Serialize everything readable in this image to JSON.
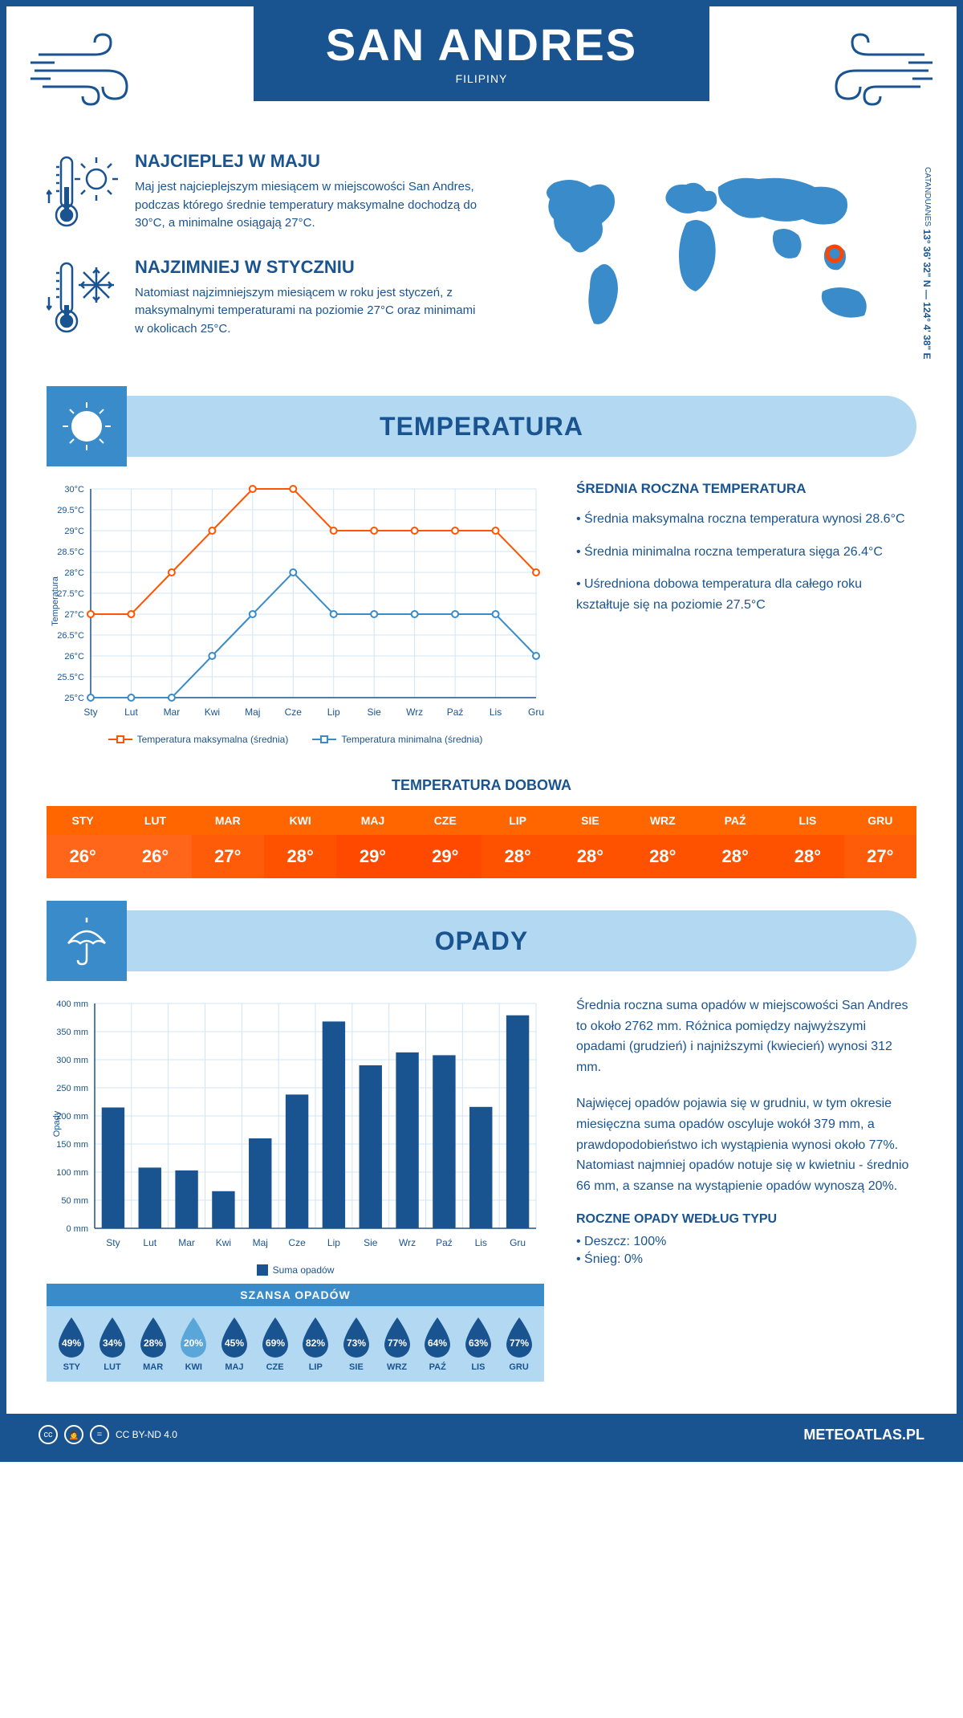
{
  "header": {
    "city": "SAN ANDRES",
    "country": "FILIPINY"
  },
  "intro": {
    "hot": {
      "title": "NAJCIEPLEJ W MAJU",
      "text": "Maj jest najcieplejszym miesiącem w miejscowości San Andres, podczas którego średnie temperatury maksymalne dochodzą do 30°C, a minimalne osiągają 27°C."
    },
    "cold": {
      "title": "NAJZIMNIEJ W STYCZNIU",
      "text": "Natomiast najzimniejszym miesiącem w roku jest styczeń, z maksymalnymi temperaturami na poziomie 27°C oraz minimami w okolicach 25°C."
    },
    "coords": "13° 36' 32\" N — 124° 4' 38\" E",
    "region": "CATANDUANES"
  },
  "months": [
    "Sty",
    "Lut",
    "Mar",
    "Kwi",
    "Maj",
    "Cze",
    "Lip",
    "Sie",
    "Wrz",
    "Paź",
    "Lis",
    "Gru"
  ],
  "months_upper": [
    "STY",
    "LUT",
    "MAR",
    "KWI",
    "MAJ",
    "CZE",
    "LIP",
    "SIE",
    "WRZ",
    "PAŹ",
    "LIS",
    "GRU"
  ],
  "temperature": {
    "section_title": "TEMPERATURA",
    "max_series": [
      27,
      27,
      28,
      29,
      30,
      30,
      29,
      29,
      29,
      29,
      29,
      28
    ],
    "min_series": [
      25,
      25,
      25,
      26,
      27,
      28,
      27,
      27,
      27,
      27,
      27,
      26
    ],
    "max_color": "#ff5500",
    "min_color": "#3a8bc9",
    "ylabel": "Temperatura",
    "ylim": [
      25,
      30
    ],
    "ytick_step": 0.5,
    "grid_color": "#d0e4f5",
    "axis_color": "#1a5490",
    "legend_max": "Temperatura maksymalna (średnia)",
    "legend_min": "Temperatura minimalna (średnia)",
    "side": {
      "title": "ŚREDNIA ROCZNA TEMPERATURA",
      "b1": "• Średnia maksymalna roczna temperatura wynosi 28.6°C",
      "b2": "• Średnia minimalna roczna temperatura sięga 26.4°C",
      "b3": "• Uśredniona dobowa temperatura dla całego roku kształtuje się na poziomie 27.5°C"
    },
    "daily_title": "TEMPERATURA DOBOWA",
    "daily_values": [
      "26°",
      "26°",
      "27°",
      "28°",
      "29°",
      "29°",
      "28°",
      "28°",
      "28°",
      "28°",
      "28°",
      "27°"
    ],
    "daily_colors": [
      "#ff661a",
      "#ff661a",
      "#ff5c0a",
      "#ff5200",
      "#ff4800",
      "#ff4800",
      "#ff5200",
      "#ff5200",
      "#ff5200",
      "#ff5200",
      "#ff5200",
      "#ff5c0a"
    ],
    "header_bg": "#ff6600"
  },
  "precipitation": {
    "section_title": "OPADY",
    "values": [
      215,
      108,
      103,
      66,
      160,
      238,
      368,
      290,
      313,
      308,
      216,
      379
    ],
    "bar_color": "#1a5490",
    "ylabel": "Opady",
    "ylim": [
      0,
      400
    ],
    "ytick_step": 50,
    "grid_color": "#d0e4f5",
    "legend": "Suma opadów",
    "side": {
      "p1": "Średnia roczna suma opadów w miejscowości San Andres to około 2762 mm. Różnica pomiędzy najwyższymi opadami (grudzień) i najniższymi (kwiecień) wynosi 312 mm.",
      "p2": "Najwięcej opadów pojawia się w grudniu, w tym okresie miesięczna suma opadów oscyluje wokół 379 mm, a prawdopodobieństwo ich wystąpienia wynosi około 77%. Natomiast najmniej opadów notuje się w kwietniu - średnio 66 mm, a szanse na wystąpienie opadów wynoszą 20%."
    },
    "chance_title": "SZANSA OPADÓW",
    "chance_values": [
      49,
      34,
      28,
      20,
      45,
      69,
      82,
      73,
      77,
      64,
      63,
      77
    ],
    "chance_colors": [
      "#1a5490",
      "#1a5490",
      "#1a5490",
      "#5aa6d8",
      "#1a5490",
      "#1a5490",
      "#1a5490",
      "#1a5490",
      "#1a5490",
      "#1a5490",
      "#1a5490",
      "#1a5490"
    ],
    "type_title": "ROCZNE OPADY WEDŁUG TYPU",
    "type_rain": "• Deszcz: 100%",
    "type_snow": "• Śnieg: 0%"
  },
  "footer": {
    "license": "CC BY-ND 4.0",
    "site": "METEOATLAS.PL"
  },
  "colors": {
    "primary": "#1a5490",
    "light_blue": "#b3d9f2",
    "mid_blue": "#3a8bc9"
  }
}
